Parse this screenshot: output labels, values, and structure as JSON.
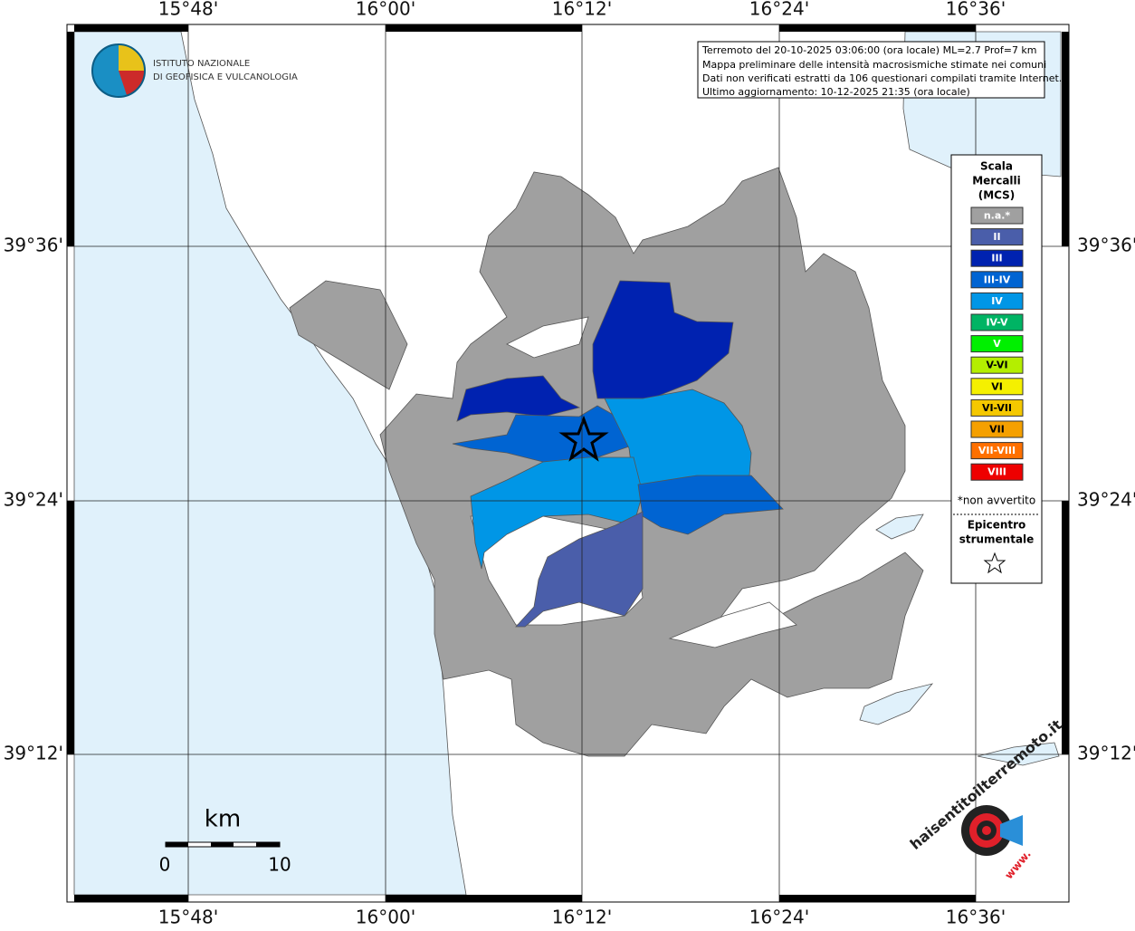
{
  "map": {
    "lon_labels": [
      "15°48'",
      "16°00'",
      "16°12'",
      "16°24'",
      "16°36'"
    ],
    "lat_labels": [
      "39°36'",
      "39°24'",
      "39°12'"
    ],
    "info": [
      "Terremoto del 20-10-2025 03:06:00 (ora locale) ML=2.7 Prof=7 km",
      "Mappa preliminare delle intensità macrosismiche stimate nei comuni",
      "Dati non verificati estratti da 106 questionari compilati tramite Internet.",
      "Ultimo aggiornamento: 10-12-2025 21:35 (ora locale)"
    ],
    "logo": [
      "ISTITUTO NAZIONALE",
      "DI GEOFISICA E VULCANOLOGIA"
    ],
    "legend": {
      "title": [
        "Scala",
        "Mercalli",
        "(MCS)"
      ],
      "items": [
        {
          "label": "n.a.*",
          "color": "#a0a0a0"
        },
        {
          "label": "II",
          "color": "#4a5eaa"
        },
        {
          "label": "III",
          "color": "#0022b0"
        },
        {
          "label": "III-IV",
          "color": "#0064d2"
        },
        {
          "label": "IV",
          "color": "#0096e6"
        },
        {
          "label": "IV-V",
          "color": "#00b464"
        },
        {
          "label": "V",
          "color": "#00f000"
        },
        {
          "label": "V-VI",
          "color": "#b4ee00"
        },
        {
          "label": "VI",
          "color": "#f5f000"
        },
        {
          "label": "VI-VII",
          "color": "#f5c800"
        },
        {
          "label": "VII",
          "color": "#f5a000"
        },
        {
          "label": "VII-VIII",
          "color": "#ff7000"
        },
        {
          "label": "VIII",
          "color": "#ee0000"
        }
      ],
      "note": "*non avvertito",
      "epicenter": [
        "Epicentro",
        "strumentale"
      ]
    },
    "scale": {
      "unit": "km",
      "labels": [
        "0",
        "10"
      ]
    },
    "badge": {
      "site": "haisentitoilterremoto.it",
      "prefix": "www."
    }
  }
}
